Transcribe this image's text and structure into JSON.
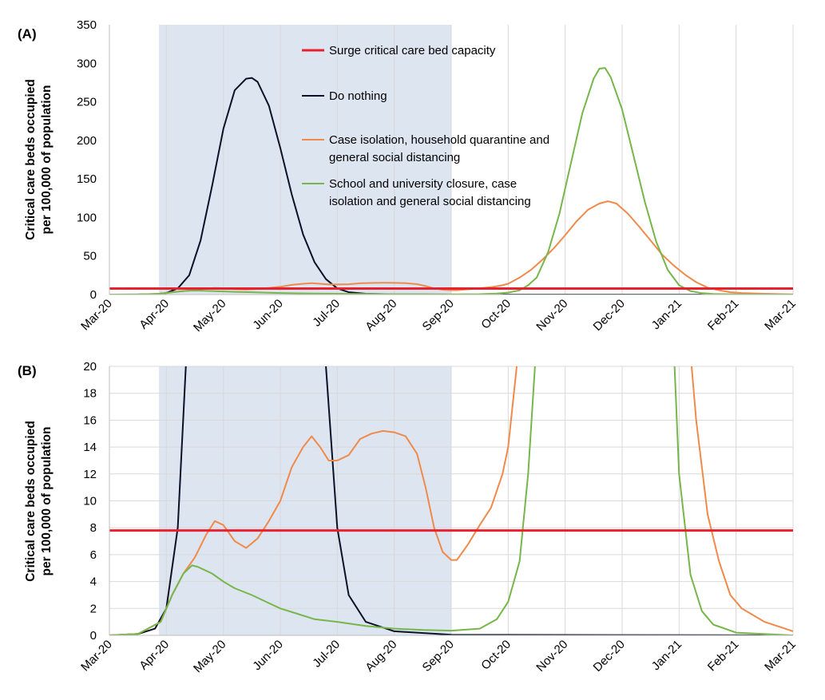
{
  "chart_data": [
    {
      "type": "line",
      "panel_label": "(A)",
      "ylabel_lines": [
        "Critical care beds occupied",
        "per 100,000 of population"
      ],
      "ylim": [
        0,
        350
      ],
      "y_ticks": [
        "0",
        "50",
        "100",
        "150",
        "200",
        "250",
        "300",
        "350"
      ],
      "x_ticks": [
        "Mar-20",
        "Apr-20",
        "May-20",
        "Jun-20",
        "Jul-20",
        "Aug-20",
        "Sep-20",
        "Oct-20",
        "Nov-20",
        "Dec-20",
        "Jan-21",
        "Feb-21",
        "Mar-21"
      ],
      "grid": "vertical",
      "shaded_period_months": [
        0.87,
        6.0
      ],
      "capacity_value": 7.8,
      "legend": [
        {
          "label_lines": [
            "Surge critical care bed capacity"
          ],
          "color": "#e8212f"
        },
        {
          "label_lines": [
            "Do nothing"
          ],
          "color": "#0a1126"
        },
        {
          "label_lines": [
            "Case isolation, household quarantine and",
            "general social distancing"
          ],
          "color": "#f08a4b"
        },
        {
          "label_lines": [
            "School and university closure, case",
            "isolation and general social distancing"
          ],
          "color": "#76b64a"
        }
      ],
      "series": [
        {
          "name": "Do nothing",
          "color": "#0a1126",
          "points": [
            [
              0,
              0
            ],
            [
              0.5,
              0.1
            ],
            [
              0.8,
              0.5
            ],
            [
              1.0,
              2
            ],
            [
              1.2,
              8
            ],
            [
              1.4,
              25
            ],
            [
              1.6,
              70
            ],
            [
              1.8,
              140
            ],
            [
              2.0,
              215
            ],
            [
              2.2,
              265
            ],
            [
              2.4,
              280
            ],
            [
              2.5,
              281
            ],
            [
              2.6,
              276
            ],
            [
              2.8,
              245
            ],
            [
              3.0,
              190
            ],
            [
              3.2,
              130
            ],
            [
              3.4,
              78
            ],
            [
              3.6,
              42
            ],
            [
              3.8,
              20
            ],
            [
              4.0,
              8
            ],
            [
              4.2,
              3
            ],
            [
              4.5,
              1
            ],
            [
              5.0,
              0.3
            ],
            [
              6.0,
              0.05
            ],
            [
              12,
              0
            ]
          ]
        },
        {
          "name": "Case isolation, household quarantine and general social distancing",
          "color": "#f08a4b",
          "points": [
            [
              0,
              0
            ],
            [
              0.5,
              0.1
            ],
            [
              0.9,
              1
            ],
            [
              1.1,
              3
            ],
            [
              1.3,
              4.6
            ],
            [
              1.5,
              5.8
            ],
            [
              1.7,
              7.5
            ],
            [
              1.85,
              8.5
            ],
            [
              2.0,
              8.2
            ],
            [
              2.2,
              7
            ],
            [
              2.4,
              6.5
            ],
            [
              2.6,
              7.2
            ],
            [
              2.8,
              8.5
            ],
            [
              3.0,
              10
            ],
            [
              3.2,
              12.5
            ],
            [
              3.4,
              14
            ],
            [
              3.55,
              14.8
            ],
            [
              3.7,
              14
            ],
            [
              3.85,
              13
            ],
            [
              4.0,
              13
            ],
            [
              4.2,
              13.4
            ],
            [
              4.4,
              14.6
            ],
            [
              4.6,
              15
            ],
            [
              4.8,
              15.2
            ],
            [
              5.0,
              15.1
            ],
            [
              5.2,
              14.8
            ],
            [
              5.4,
              13.5
            ],
            [
              5.55,
              11
            ],
            [
              5.7,
              8
            ],
            [
              5.85,
              6.2
            ],
            [
              6.0,
              5.6
            ],
            [
              6.1,
              5.6
            ],
            [
              6.3,
              6.8
            ],
            [
              6.5,
              8.2
            ],
            [
              6.7,
              9.5
            ],
            [
              6.9,
              12
            ],
            [
              7.0,
              14
            ],
            [
              7.2,
              22
            ],
            [
              7.4,
              32
            ],
            [
              7.6,
              45
            ],
            [
              7.8,
              60
            ],
            [
              8.0,
              77
            ],
            [
              8.2,
              95
            ],
            [
              8.4,
              110
            ],
            [
              8.6,
              118
            ],
            [
              8.75,
              121
            ],
            [
              8.9,
              118
            ],
            [
              9.1,
              105
            ],
            [
              9.3,
              88
            ],
            [
              9.5,
              70
            ],
            [
              9.7,
              52
            ],
            [
              9.9,
              38
            ],
            [
              10.1,
              26
            ],
            [
              10.3,
              16
            ],
            [
              10.5,
              9
            ],
            [
              10.7,
              5.5
            ],
            [
              10.9,
              3
            ],
            [
              11.1,
              2
            ],
            [
              11.5,
              1
            ],
            [
              12,
              0.3
            ]
          ]
        },
        {
          "name": "School and university closure, case isolation and general social distancing",
          "color": "#76b64a",
          "points": [
            [
              0,
              0
            ],
            [
              0.5,
              0.1
            ],
            [
              0.9,
              1
            ],
            [
              1.1,
              3
            ],
            [
              1.3,
              4.6
            ],
            [
              1.45,
              5.2
            ],
            [
              1.55,
              5.1
            ],
            [
              1.8,
              4.6
            ],
            [
              2.0,
              4
            ],
            [
              2.2,
              3.5
            ],
            [
              2.5,
              3
            ],
            [
              2.8,
              2.4
            ],
            [
              3.0,
              2
            ],
            [
              3.3,
              1.6
            ],
            [
              3.6,
              1.2
            ],
            [
              4.0,
              1.0
            ],
            [
              4.5,
              0.7
            ],
            [
              5.0,
              0.5
            ],
            [
              5.5,
              0.4
            ],
            [
              6.0,
              0.35
            ],
            [
              6.5,
              0.5
            ],
            [
              6.8,
              1.2
            ],
            [
              7.0,
              2.5
            ],
            [
              7.2,
              5.5
            ],
            [
              7.35,
              12
            ],
            [
              7.5,
              22
            ],
            [
              7.7,
              55
            ],
            [
              7.9,
              105
            ],
            [
              8.1,
              170
            ],
            [
              8.3,
              235
            ],
            [
              8.5,
              280
            ],
            [
              8.6,
              293
            ],
            [
              8.7,
              294
            ],
            [
              8.8,
              282
            ],
            [
              9.0,
              240
            ],
            [
              9.2,
              180
            ],
            [
              9.4,
              120
            ],
            [
              9.6,
              68
            ],
            [
              9.8,
              32
            ],
            [
              10.0,
              12
            ],
            [
              10.2,
              4.5
            ],
            [
              10.4,
              1.8
            ],
            [
              10.6,
              0.8
            ],
            [
              11.0,
              0.2
            ],
            [
              12,
              0
            ]
          ]
        }
      ]
    },
    {
      "type": "line",
      "panel_label": "(B)",
      "ylabel_lines": [
        "Critical care beds occupied",
        "per 100,000 of population"
      ],
      "ylim": [
        0,
        20
      ],
      "y_ticks": [
        "0",
        "2",
        "4",
        "6",
        "8",
        "10",
        "12",
        "14",
        "16",
        "18",
        "20"
      ],
      "x_ticks": [
        "Mar-20",
        "Apr-20",
        "May-20",
        "Jun-20",
        "Jul-20",
        "Aug-20",
        "Sep-20",
        "Oct-20",
        "Nov-20",
        "Dec-20",
        "Jan-21",
        "Feb-21",
        "Mar-21"
      ],
      "grid": "both",
      "shaded_period_months": [
        0.87,
        6.0
      ],
      "capacity_value": 7.8,
      "series_ref": "same data as panel (A), clipped to y-axis range"
    }
  ]
}
